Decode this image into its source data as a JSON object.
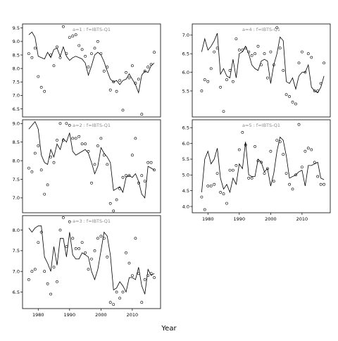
{
  "figure": {
    "xlabel": "Year"
  },
  "chart_data": [
    {
      "type": "line",
      "title": "a=1 : f=IBTS-Q1",
      "xlim": [
        1975,
        2019
      ],
      "ylim": [
        6.2,
        9.65
      ],
      "yticks": [
        6.5,
        7.0,
        7.5,
        8.0,
        8.5,
        9.0,
        9.5
      ],
      "xticks": [
        1980,
        1990,
        2000,
        2010
      ],
      "show_xticks": false,
      "line": {
        "x": [
          1977,
          1978,
          1979,
          1980,
          1981,
          1982,
          1983,
          1984,
          1985,
          1986,
          1987,
          1988,
          1989,
          1990,
          1991,
          1992,
          1993,
          1994,
          1995,
          1996,
          1997,
          1998,
          1999,
          2000,
          2001,
          2002,
          2003,
          2004,
          2005,
          2006,
          2007,
          2008,
          2009,
          2010,
          2011,
          2012,
          2013,
          2014,
          2015,
          2016,
          2017
        ],
        "y": [
          9.25,
          9.35,
          9.15,
          8.45,
          8.4,
          8.35,
          8.6,
          8.4,
          8.7,
          8.75,
          8.45,
          8.8,
          8.45,
          8.3,
          8.4,
          8.45,
          8.4,
          8.35,
          8.2,
          7.75,
          8.1,
          8.5,
          8.6,
          8.5,
          8.25,
          7.9,
          7.6,
          7.5,
          7.55,
          7.4,
          7.55,
          7.6,
          7.8,
          7.6,
          7.4,
          7.1,
          7.75,
          7.9,
          7.85,
          8.1,
          8.2
        ]
      },
      "points": {
        "x": [
          1977,
          1978,
          1979,
          1980,
          1981,
          1982,
          1984,
          1985,
          1986,
          1987,
          1988,
          1989,
          1990,
          1991,
          1992,
          1993,
          1994,
          1995,
          1996,
          1997,
          1998,
          1999,
          2000,
          2001,
          2002,
          2003,
          2004,
          2005,
          2006,
          2007,
          2008,
          2009,
          2010,
          2011,
          2012,
          2013,
          2014,
          2015,
          2016,
          2017
        ],
        "y": [
          8.55,
          8.4,
          8.75,
          7.7,
          7.3,
          7.15,
          8.5,
          8.1,
          8.8,
          8.4,
          9.55,
          8.55,
          9.15,
          9.2,
          9.25,
          8.85,
          8.7,
          8.45,
          8.05,
          8.55,
          8.75,
          9.0,
          8.55,
          7.9,
          8.05,
          7.2,
          7.5,
          7.15,
          7.55,
          6.45,
          7.85,
          7.65,
          8.1,
          7.45,
          7.6,
          6.3,
          7.9,
          8.05,
          8.15,
          8.6
        ]
      }
    },
    {
      "type": "line",
      "title": "a=4 : f=IBTS-Q1",
      "xlim": [
        1975,
        2019
      ],
      "ylim": [
        4.8,
        7.3
      ],
      "yticks": [
        5.5,
        6.0,
        6.5,
        7.0
      ],
      "xticks": [
        1980,
        1990,
        2000,
        2010
      ],
      "show_xticks": false,
      "line": {
        "x": [
          1978,
          1979,
          1980,
          1981,
          1982,
          1983,
          1984,
          1985,
          1986,
          1987,
          1988,
          1989,
          1990,
          1991,
          1992,
          1993,
          1994,
          1995,
          1996,
          1997,
          1998,
          1999,
          2000,
          2001,
          2002,
          2003,
          2004,
          2005,
          2006,
          2007,
          2008,
          2009,
          2010,
          2011,
          2012,
          2013,
          2014,
          2015,
          2016,
          2017
        ],
        "y": [
          6.55,
          6.9,
          6.6,
          6.7,
          6.85,
          7.05,
          5.95,
          6.1,
          5.9,
          5.85,
          6.35,
          5.85,
          6.5,
          6.55,
          6.7,
          6.5,
          6.2,
          6.1,
          6.05,
          6.3,
          6.35,
          6.3,
          5.7,
          6.2,
          6.5,
          6.95,
          6.85,
          5.75,
          5.7,
          5.85,
          5.55,
          5.9,
          6.0,
          6.0,
          6.2,
          5.6,
          5.5,
          5.45,
          5.6,
          5.9
        ]
      },
      "points": {
        "x": [
          1978,
          1979,
          1980,
          1981,
          1982,
          1983,
          1984,
          1985,
          1986,
          1987,
          1988,
          1989,
          1990,
          1991,
          1992,
          1993,
          1994,
          1995,
          1996,
          1997,
          1998,
          1999,
          2000,
          2001,
          2002,
          2003,
          2004,
          2005,
          2006,
          2007,
          2008,
          2009,
          2010,
          2011,
          2012,
          2013,
          2014,
          2015,
          2016,
          2017
        ],
        "y": [
          5.5,
          5.8,
          5.75,
          6.1,
          6.55,
          6.65,
          5.6,
          4.95,
          5.8,
          6.05,
          5.75,
          6.9,
          6.6,
          6.6,
          6.65,
          6.55,
          6.45,
          6.5,
          6.7,
          6.2,
          6.5,
          5.85,
          6.55,
          6.2,
          7.2,
          6.65,
          6.05,
          5.4,
          5.35,
          5.2,
          5.15,
          6.25,
          6.55,
          6.0,
          6.5,
          6.4,
          5.5,
          5.5,
          5.7,
          6.25
        ]
      }
    },
    {
      "type": "line",
      "title": "a=2 : f=IBTS-Q1",
      "xlim": [
        1975,
        2019
      ],
      "ylim": [
        6.6,
        9.1
      ],
      "yticks": [
        7.0,
        7.5,
        8.0,
        8.5,
        9.0
      ],
      "xticks": [
        1980,
        1990,
        2000,
        2010
      ],
      "show_xticks": false,
      "line": {
        "x": [
          1977,
          1978,
          1979,
          1980,
          1981,
          1982,
          1983,
          1984,
          1985,
          1986,
          1987,
          1988,
          1989,
          1990,
          1991,
          1992,
          1993,
          1994,
          1995,
          1996,
          1997,
          1998,
          1999,
          2000,
          2001,
          2002,
          2003,
          2004,
          2005,
          2006,
          2007,
          2008,
          2009,
          2010,
          2011,
          2012,
          2013,
          2014,
          2015,
          2016,
          2017
        ],
        "y": [
          8.85,
          8.95,
          9.05,
          8.85,
          8.15,
          7.95,
          7.9,
          8.3,
          8.1,
          8.45,
          8.3,
          8.6,
          8.5,
          8.75,
          8.25,
          8.15,
          8.2,
          8.25,
          8.3,
          8.2,
          7.95,
          7.65,
          7.85,
          8.35,
          8.2,
          8.1,
          7.95,
          7.2,
          7.25,
          7.3,
          7.15,
          7.55,
          7.6,
          7.55,
          7.65,
          7.45,
          7.1,
          7.0,
          7.85,
          7.8,
          7.75
        ]
      },
      "points": {
        "x": [
          1977,
          1978,
          1979,
          1980,
          1981,
          1982,
          1983,
          1984,
          1985,
          1986,
          1987,
          1988,
          1989,
          1990,
          1991,
          1992,
          1993,
          1994,
          1995,
          1996,
          1997,
          1998,
          1999,
          2000,
          2001,
          2002,
          2003,
          2004,
          2005,
          2006,
          2007,
          2008,
          2009,
          2010,
          2011,
          2012,
          2013,
          2014,
          2015,
          2016,
          2017
        ],
        "y": [
          7.8,
          7.7,
          8.2,
          8.4,
          7.75,
          7.1,
          7.35,
          8.1,
          7.95,
          8.55,
          9.0,
          8.55,
          9.0,
          8.95,
          8.6,
          8.6,
          8.65,
          8.45,
          8.45,
          8.25,
          7.4,
          7.9,
          8.4,
          8.6,
          8.15,
          7.9,
          6.85,
          6.65,
          6.95,
          7.25,
          7.55,
          7.6,
          7.6,
          8.15,
          8.6,
          7.4,
          7.6,
          7.45,
          7.95,
          7.95,
          7.75
        ]
      }
    },
    {
      "type": "line",
      "title": "a=5 : f=IBTS-Q1",
      "xlim": [
        1975,
        2019
      ],
      "ylim": [
        3.8,
        6.75
      ],
      "yticks": [
        4.0,
        4.5,
        5.0,
        5.5,
        6.0,
        6.5
      ],
      "xticks": [
        1980,
        1990,
        2000,
        2010
      ],
      "show_xticks": true,
      "line": {
        "x": [
          1978,
          1979,
          1980,
          1981,
          1982,
          1983,
          1984,
          1985,
          1986,
          1987,
          1988,
          1989,
          1990,
          1991,
          1992,
          1993,
          1994,
          1995,
          1996,
          1997,
          1998,
          1999,
          2000,
          2001,
          2002,
          2003,
          2004,
          2005,
          2006,
          2007,
          2008,
          2009,
          2010,
          2011,
          2012,
          2013,
          2014,
          2015,
          2016,
          2017
        ],
        "y": [
          4.45,
          5.5,
          5.75,
          5.35,
          5.5,
          5.85,
          4.9,
          4.55,
          4.7,
          4.45,
          4.9,
          4.7,
          5.35,
          5.2,
          6.05,
          5.0,
          4.95,
          4.95,
          5.5,
          5.4,
          5.1,
          5.2,
          4.65,
          5.05,
          5.75,
          6.2,
          6.1,
          5.6,
          4.9,
          4.95,
          5.0,
          5.1,
          5.15,
          4.65,
          5.3,
          5.3,
          5.35,
          5.4,
          4.9,
          4.85
        ]
      },
      "points": {
        "x": [
          1978,
          1979,
          1980,
          1981,
          1982,
          1983,
          1984,
          1985,
          1986,
          1987,
          1988,
          1989,
          1990,
          1991,
          1992,
          1993,
          1994,
          1995,
          1996,
          1997,
          1998,
          1999,
          2000,
          2001,
          2002,
          2003,
          2004,
          2005,
          2006,
          2007,
          2008,
          2009,
          2010,
          2011,
          2012,
          2013,
          2014,
          2015,
          2016,
          2017
        ],
        "y": [
          4.3,
          3.9,
          4.65,
          4.65,
          4.7,
          5.05,
          4.45,
          4.4,
          4.1,
          5.15,
          5.15,
          5.3,
          5.8,
          6.35,
          5.95,
          4.9,
          4.9,
          5.9,
          5.45,
          5.4,
          5.05,
          5.2,
          5.75,
          4.8,
          6.1,
          6.05,
          5.65,
          5.05,
          4.7,
          4.55,
          5.0,
          6.6,
          5.25,
          5.75,
          5.85,
          5.8,
          5.4,
          4.95,
          4.7,
          4.7
        ]
      }
    },
    {
      "type": "line",
      "title": "a=3 : f=IBTS-Q1",
      "xlim": [
        1975,
        2019
      ],
      "ylim": [
        6.1,
        8.35
      ],
      "yticks": [
        6.5,
        7.0,
        7.5,
        8.0
      ],
      "xticks": [
        1980,
        1990,
        2000,
        2010
      ],
      "show_xticks": true,
      "line": {
        "x": [
          1977,
          1978,
          1979,
          1980,
          1981,
          1982,
          1983,
          1984,
          1985,
          1986,
          1987,
          1988,
          1989,
          1990,
          1991,
          1992,
          1993,
          1994,
          1995,
          1996,
          1997,
          1998,
          1999,
          2000,
          2001,
          2002,
          2003,
          2004,
          2005,
          2006,
          2007,
          2008,
          2009,
          2010,
          2011,
          2012,
          2013,
          2014,
          2015,
          2016,
          2017
        ],
        "y": [
          8.05,
          7.95,
          8.05,
          8.1,
          8.1,
          7.35,
          7.2,
          7.0,
          7.6,
          7.15,
          7.8,
          7.8,
          7.35,
          7.95,
          7.4,
          7.3,
          7.3,
          7.45,
          7.4,
          7.35,
          7.0,
          6.8,
          7.05,
          7.5,
          7.95,
          7.85,
          7.4,
          6.55,
          6.6,
          6.75,
          6.65,
          6.5,
          6.85,
          6.85,
          6.8,
          7.1,
          6.65,
          6.45,
          7.05,
          6.9,
          6.95
        ]
      },
      "points": {
        "x": [
          1977,
          1978,
          1979,
          1980,
          1981,
          1982,
          1983,
          1984,
          1985,
          1986,
          1987,
          1988,
          1989,
          1990,
          1991,
          1992,
          1993,
          1994,
          1995,
          1996,
          1997,
          1998,
          1999,
          2000,
          2001,
          2002,
          2003,
          2004,
          2005,
          2006,
          2007,
          2008,
          2009,
          2010,
          2011,
          2012,
          2013,
          2014,
          2015,
          2016,
          2017
        ],
        "y": [
          6.8,
          7.0,
          7.05,
          7.7,
          7.95,
          7.0,
          6.7,
          6.45,
          7.1,
          6.75,
          8.0,
          8.3,
          7.6,
          8.2,
          7.8,
          7.55,
          7.55,
          7.7,
          7.45,
          7.05,
          7.3,
          7.5,
          7.8,
          7.85,
          7.8,
          7.35,
          6.25,
          6.2,
          6.5,
          6.35,
          6.5,
          7.45,
          7.2,
          6.9,
          7.8,
          6.95,
          6.25,
          6.8,
          6.9,
          6.95,
          6.85
        ]
      }
    }
  ]
}
